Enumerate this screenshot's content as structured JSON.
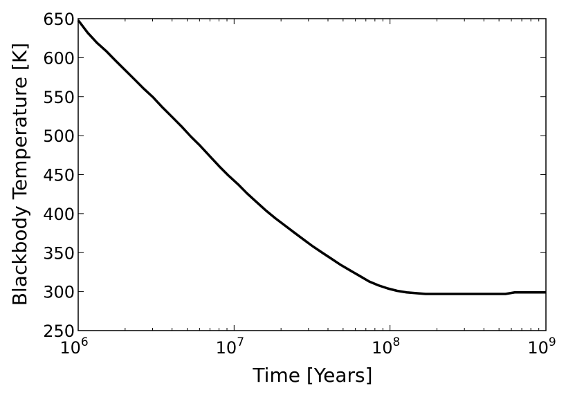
{
  "chart_data": {
    "type": "line",
    "xlabel": "Time [Years]",
    "ylabel": "Blackbody Temperature [K]",
    "xscale": "log",
    "xlim": [
      1000000,
      1000000000
    ],
    "ylim": [
      250,
      650
    ],
    "grid": false,
    "legend": "none",
    "x_ticks": [
      {
        "value": 1000000,
        "base": "10",
        "exp": "6"
      },
      {
        "value": 10000000,
        "base": "10",
        "exp": "7"
      },
      {
        "value": 100000000,
        "base": "10",
        "exp": "8"
      },
      {
        "value": 1000000000,
        "base": "10",
        "exp": "9"
      }
    ],
    "y_ticks": [
      250,
      300,
      350,
      400,
      450,
      500,
      550,
      600,
      650
    ],
    "series": [
      {
        "color": "#000000",
        "x": [
          1000000,
          1150000,
          1320000,
          1520000,
          1740000,
          2000000,
          2300000,
          2640000,
          3030000,
          3480000,
          4000000,
          4590000,
          5270000,
          6060000,
          6960000,
          8000000,
          9180000,
          10550000,
          12100000,
          13900000,
          16000000,
          18400000,
          21100000,
          24200000,
          27800000,
          32000000,
          36700000,
          42200000,
          48500000,
          55700000,
          64000000,
          73500000,
          84400000,
          97000000,
          111000000,
          128000000,
          147000000,
          169000000,
          194000000,
          223000000,
          300000000,
          400000000,
          550000000,
          630000000,
          800000000,
          1000000000
        ],
        "y": [
          648,
          632,
          619,
          608,
          596,
          584,
          572,
          560,
          549,
          536,
          524,
          512,
          499,
          487,
          474,
          461,
          449,
          438,
          426,
          415,
          404,
          394,
          385,
          376,
          367,
          358,
          350,
          342,
          334,
          327,
          320,
          313,
          308,
          304,
          301,
          299,
          298,
          297,
          297,
          297,
          297,
          297,
          297,
          299,
          299,
          299
        ]
      }
    ]
  }
}
